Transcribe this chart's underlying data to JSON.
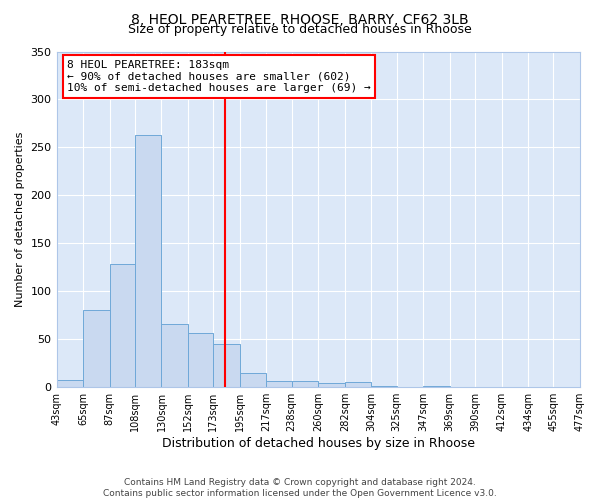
{
  "title": "8, HEOL PEARETREE, RHOOSE, BARRY, CF62 3LB",
  "subtitle": "Size of property relative to detached houses in Rhoose",
  "xlabel": "Distribution of detached houses by size in Rhoose",
  "ylabel": "Number of detached properties",
  "bar_values": [
    7,
    81,
    128,
    263,
    66,
    56,
    45,
    15,
    6,
    6,
    4,
    5,
    1,
    0,
    1,
    0,
    0,
    0,
    0,
    0
  ],
  "bin_edges": [
    43,
    65,
    87,
    108,
    130,
    152,
    173,
    195,
    217,
    238,
    260,
    282,
    304,
    325,
    347,
    369,
    390,
    412,
    434,
    455,
    477
  ],
  "tick_labels": [
    "43sqm",
    "65sqm",
    "87sqm",
    "108sqm",
    "130sqm",
    "152sqm",
    "173sqm",
    "195sqm",
    "217sqm",
    "238sqm",
    "260sqm",
    "282sqm",
    "304sqm",
    "325sqm",
    "347sqm",
    "369sqm",
    "390sqm",
    "412sqm",
    "434sqm",
    "455sqm",
    "477sqm"
  ],
  "bar_color": "#c9d9f0",
  "bar_edgecolor": "#6fa8d8",
  "vline_x": 183,
  "vline_color": "red",
  "ylim": [
    0,
    350
  ],
  "yticks": [
    0,
    50,
    100,
    150,
    200,
    250,
    300,
    350
  ],
  "annotation_text": "8 HEOL PEARETREE: 183sqm\n← 90% of detached houses are smaller (602)\n10% of semi-detached houses are larger (69) →",
  "annotation_box_edgecolor": "red",
  "footer_text": "Contains HM Land Registry data © Crown copyright and database right 2024.\nContains public sector information licensed under the Open Government Licence v3.0.",
  "plot_bg_color": "#dce8f8",
  "fig_bg_color": "#ffffff",
  "grid_color": "#ffffff",
  "title_fontsize": 10,
  "subtitle_fontsize": 9,
  "ylabel_fontsize": 8,
  "xlabel_fontsize": 9,
  "ytick_fontsize": 8,
  "xtick_fontsize": 7,
  "annotation_fontsize": 8,
  "footer_fontsize": 6.5
}
